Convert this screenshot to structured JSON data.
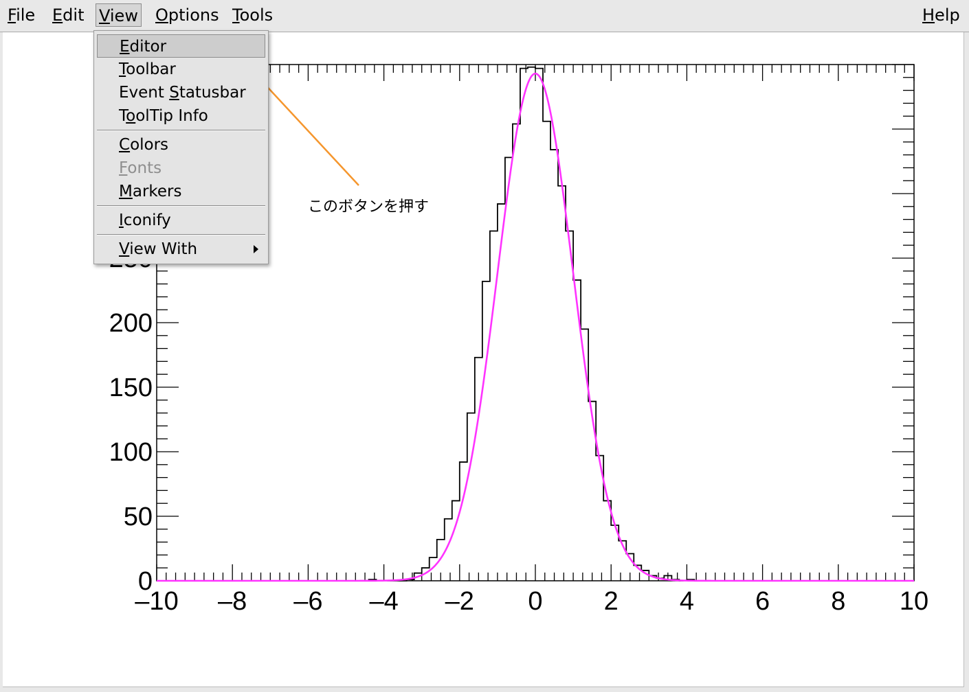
{
  "menubar": {
    "items": [
      {
        "mnemonic": "F",
        "rest": "ile"
      },
      {
        "mnemonic": "E",
        "rest": "dit"
      },
      {
        "mnemonic": "V",
        "rest": "iew"
      },
      {
        "mnemonic": "O",
        "rest": "ptions"
      },
      {
        "mnemonic": "T",
        "rest": "ools"
      }
    ],
    "help": {
      "mnemonic": "H",
      "rest": "elp"
    }
  },
  "view_menu": {
    "items": [
      {
        "pre": "",
        "mnemonic": "E",
        "rest": "ditor",
        "state": "highlighted"
      },
      {
        "pre": "",
        "mnemonic": "T",
        "rest": "oolbar",
        "state": "normal"
      },
      {
        "pre": "Event ",
        "mnemonic": "S",
        "rest": "tatusbar",
        "state": "normal"
      },
      {
        "pre": "T",
        "mnemonic": "o",
        "rest": "olTip Info",
        "state": "normal"
      },
      {
        "pre": "",
        "mnemonic": "C",
        "rest": "olors",
        "state": "normal"
      },
      {
        "pre": "",
        "mnemonic": "F",
        "rest": "onts",
        "state": "disabled"
      },
      {
        "pre": "",
        "mnemonic": "M",
        "rest": "arkers",
        "state": "normal"
      },
      {
        "pre": "",
        "mnemonic": "I",
        "rest": "conify",
        "state": "normal"
      },
      {
        "pre": "",
        "mnemonic": "V",
        "rest": "iew With",
        "state": "submenu"
      }
    ]
  },
  "annotation": {
    "text": "このボタンを押す",
    "color": "#f5962d",
    "target_icon": "arrow-icon"
  },
  "chart_data": {
    "type": "bar",
    "style": "step-histogram",
    "title": "",
    "xlabel": "",
    "ylabel": "",
    "xlim": [
      -10,
      10
    ],
    "ylim": [
      0,
      400
    ],
    "x_ticks": [
      -10,
      -8,
      -6,
      -4,
      -2,
      0,
      2,
      4,
      6,
      8,
      10
    ],
    "x_tick_labels": [
      "–10",
      "–8",
      "–6",
      "–4",
      "–2",
      "0",
      "2",
      "4",
      "6",
      "8",
      "10"
    ],
    "y_ticks": [
      0,
      50,
      100,
      150,
      200,
      250
    ],
    "y_tick_labels": [
      "0",
      "50",
      "100",
      "150",
      "200",
      "250"
    ],
    "grid": false,
    "histogram": {
      "bin_width": 0.2,
      "color": "#000000",
      "bins": [
        {
          "x_low": -4.4,
          "count": 1
        },
        {
          "x_low": -3.4,
          "count": 1
        },
        {
          "x_low": -3.2,
          "count": 6
        },
        {
          "x_low": -3.0,
          "count": 10
        },
        {
          "x_low": -2.8,
          "count": 18
        },
        {
          "x_low": -2.6,
          "count": 32
        },
        {
          "x_low": -2.4,
          "count": 48
        },
        {
          "x_low": -2.2,
          "count": 62
        },
        {
          "x_low": -2.0,
          "count": 92
        },
        {
          "x_low": -1.8,
          "count": 130
        },
        {
          "x_low": -1.6,
          "count": 173
        },
        {
          "x_low": -1.4,
          "count": 232
        },
        {
          "x_low": -1.2,
          "count": 271
        },
        {
          "x_low": -1.0,
          "count": 292
        },
        {
          "x_low": -0.8,
          "count": 328
        },
        {
          "x_low": -0.6,
          "count": 354
        },
        {
          "x_low": -0.4,
          "count": 397
        },
        {
          "x_low": -0.2,
          "count": 398
        },
        {
          "x_low": 0.0,
          "count": 397
        },
        {
          "x_low": 0.2,
          "count": 356
        },
        {
          "x_low": 0.4,
          "count": 334
        },
        {
          "x_low": 0.6,
          "count": 306
        },
        {
          "x_low": 0.8,
          "count": 271
        },
        {
          "x_low": 1.0,
          "count": 233
        },
        {
          "x_low": 1.2,
          "count": 195
        },
        {
          "x_low": 1.4,
          "count": 139
        },
        {
          "x_low": 1.6,
          "count": 97
        },
        {
          "x_low": 1.8,
          "count": 62
        },
        {
          "x_low": 2.0,
          "count": 43
        },
        {
          "x_low": 2.2,
          "count": 31
        },
        {
          "x_low": 2.4,
          "count": 21
        },
        {
          "x_low": 2.6,
          "count": 12
        },
        {
          "x_low": 2.8,
          "count": 8
        },
        {
          "x_low": 3.0,
          "count": 4
        },
        {
          "x_low": 3.2,
          "count": 2
        },
        {
          "x_low": 3.4,
          "count": 4
        },
        {
          "x_low": 3.6,
          "count": 1
        },
        {
          "x_low": 4.0,
          "count": 1
        }
      ]
    },
    "fit": {
      "function": "gaussian",
      "amplitude": 393,
      "mean": 0.0,
      "sigma": 1.0,
      "color": "#ff33ff"
    }
  }
}
